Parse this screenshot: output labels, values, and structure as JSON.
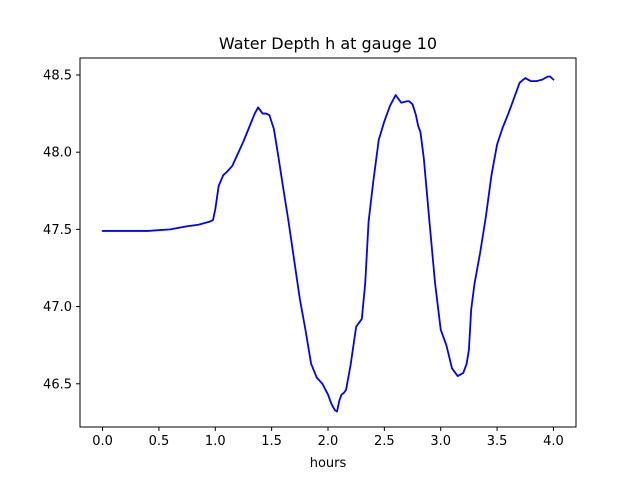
{
  "chart_data": {
    "type": "line",
    "title": "Water Depth h at gauge 10",
    "xlabel": "hours",
    "ylabel": "",
    "xlim": [
      -0.2,
      4.2
    ],
    "ylim": [
      46.22,
      48.61
    ],
    "xticks": [
      0.0,
      0.5,
      1.0,
      1.5,
      2.0,
      2.5,
      3.0,
      3.5,
      4.0
    ],
    "xtick_labels": [
      "0.0",
      "0.5",
      "1.0",
      "1.5",
      "2.0",
      "2.5",
      "3.0",
      "3.5",
      "4.0"
    ],
    "yticks": [
      46.5,
      47.0,
      47.5,
      48.0,
      48.5
    ],
    "ytick_labels": [
      "46.5",
      "47.0",
      "47.5",
      "48.0",
      "48.5"
    ],
    "grid": false,
    "line_color": "#0000ff",
    "series": [
      {
        "x": [
          0.0,
          0.2,
          0.4,
          0.6,
          0.75,
          0.85,
          0.95,
          0.98,
          1.0,
          1.03,
          1.07,
          1.1,
          1.15,
          1.2,
          1.25,
          1.3,
          1.35,
          1.38,
          1.42,
          1.45,
          1.48,
          1.52,
          1.56,
          1.6,
          1.65,
          1.7,
          1.75,
          1.8,
          1.85,
          1.9,
          1.95,
          2.0,
          2.03,
          2.06,
          2.08,
          2.1,
          2.12,
          2.14,
          2.16,
          2.2,
          2.25,
          2.3,
          2.33,
          2.36,
          2.4,
          2.45,
          2.5,
          2.55,
          2.6,
          2.65,
          2.7,
          2.72,
          2.75,
          2.78,
          2.8,
          2.82,
          2.85,
          2.9,
          2.95,
          3.0,
          3.05,
          3.1,
          3.15,
          3.2,
          3.23,
          3.25,
          3.27,
          3.3,
          3.35,
          3.4,
          3.45,
          3.5,
          3.55,
          3.6,
          3.65,
          3.7,
          3.75,
          3.8,
          3.85,
          3.9,
          3.95,
          3.97,
          4.0
        ],
        "y": [
          47.49,
          47.49,
          47.49,
          47.5,
          47.52,
          47.53,
          47.55,
          47.56,
          47.63,
          47.78,
          47.85,
          47.87,
          47.91,
          47.99,
          48.07,
          48.16,
          48.25,
          48.29,
          48.25,
          48.25,
          48.24,
          48.15,
          47.97,
          47.78,
          47.55,
          47.3,
          47.05,
          46.85,
          46.63,
          46.54,
          46.5,
          46.43,
          46.37,
          46.33,
          46.32,
          46.39,
          46.43,
          46.44,
          46.46,
          46.62,
          46.87,
          46.92,
          47.15,
          47.55,
          47.8,
          48.08,
          48.2,
          48.3,
          48.37,
          48.32,
          48.33,
          48.33,
          48.31,
          48.24,
          48.17,
          48.13,
          47.96,
          47.55,
          47.15,
          46.85,
          46.75,
          46.6,
          46.55,
          46.57,
          46.63,
          46.72,
          46.98,
          47.15,
          47.35,
          47.58,
          47.85,
          48.05,
          48.16,
          48.25,
          48.35,
          48.45,
          48.48,
          48.46,
          48.46,
          48.47,
          48.49,
          48.49,
          48.47
        ]
      }
    ]
  }
}
